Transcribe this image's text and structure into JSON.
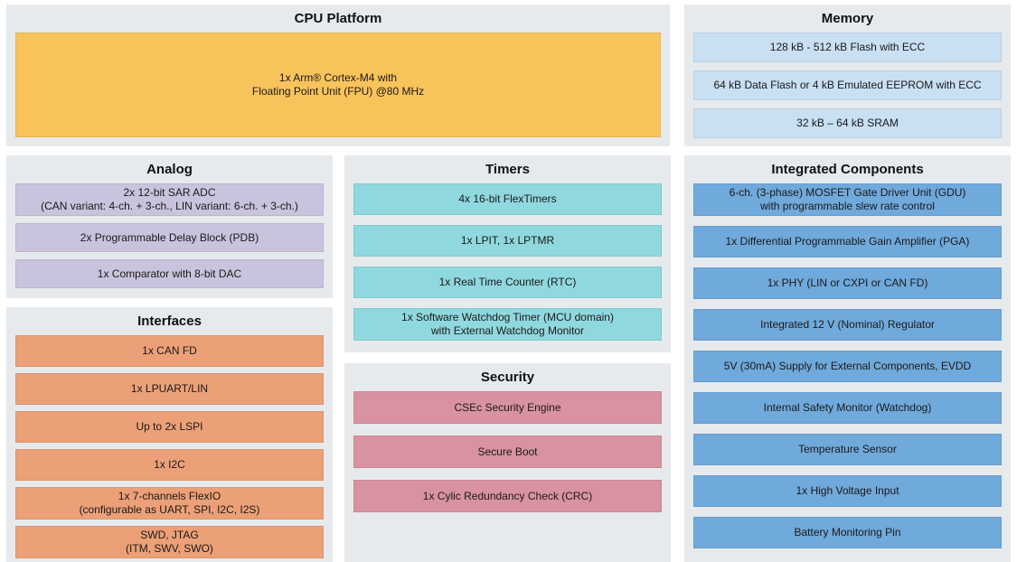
{
  "colors": {
    "panel_bg": "#E7EAED",
    "cpu": "#F9C35C",
    "memory": "#C9DFF2",
    "analog": "#CAC3DD",
    "timers": "#8FD8DE",
    "interfaces": "#ECA077",
    "security": "#D9929F",
    "integrated": "#70A9DB"
  },
  "sections": {
    "cpu": {
      "title": "CPU Platform",
      "blocks": [
        "1x Arm® Cortex-M4 with\nFloating Point Unit (FPU) @80 MHz"
      ]
    },
    "memory": {
      "title": "Memory",
      "blocks": [
        "128 kB - 512 kB Flash with ECC",
        "64 kB Data Flash or 4 kB Emulated EEPROM with ECC",
        "32 kB – 64 kB SRAM"
      ]
    },
    "analog": {
      "title": "Analog",
      "blocks": [
        "2x 12-bit SAR ADC\n(CAN variant: 4-ch. + 3-ch., LIN variant: 6-ch. + 3-ch.)",
        "2x Programmable Delay Block (PDB)",
        "1x Comparator with 8-bit DAC"
      ]
    },
    "timers": {
      "title": "Timers",
      "blocks": [
        "4x 16-bit FlexTimers",
        "1x LPIT, 1x LPTMR",
        "1x Real Time Counter (RTC)",
        "1x Software Watchdog Timer (MCU domain)\nwith External Watchdog Monitor"
      ]
    },
    "interfaces": {
      "title": "Interfaces",
      "blocks": [
        "1x CAN FD",
        "1x LPUART/LIN",
        "Up to 2x LSPI",
        "1x I2C",
        "1x 7-channels FlexIO\n(configurable as UART, SPI, I2C, I2S)",
        "SWD, JTAG\n(ITM, SWV, SWO)"
      ]
    },
    "security": {
      "title": "Security",
      "blocks": [
        "CSEc Security Engine",
        "Secure Boot",
        "1x Cylic Redundancy Check (CRC)"
      ]
    },
    "integrated": {
      "title": "Integrated Components",
      "blocks": [
        "6-ch. (3-phase) MOSFET Gate Driver Unit (GDU)\nwith programmable slew rate control",
        "1x Differential Programmable Gain Amplifier (PGA)",
        "1x PHY (LIN or CXPI or CAN FD)",
        "Integrated 12 V (Nominal) Regulator",
        "5V (30mA) Supply for External Components, EVDD",
        "Internal Safety Monitor (Watchdog)",
        "Temperature Sensor",
        "1x High Voltage Input",
        "Battery Monitoring Pin"
      ]
    }
  }
}
